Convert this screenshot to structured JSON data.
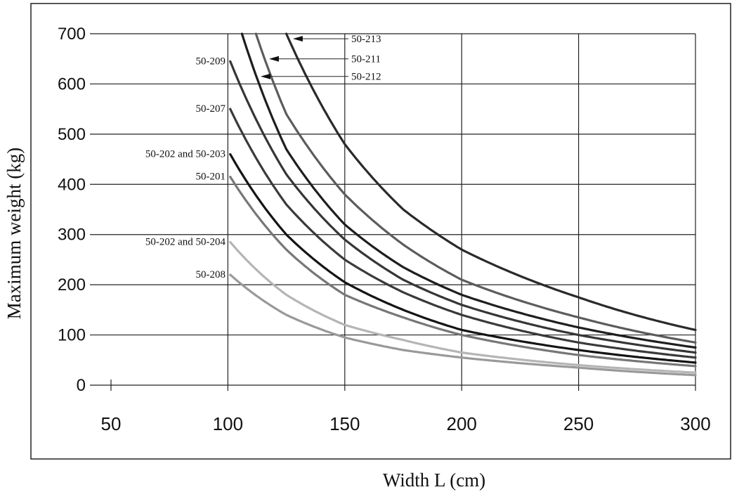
{
  "chart_data": {
    "type": "line",
    "title": "",
    "xlabel": "Width L (cm)",
    "ylabel": "Maximum weight (kg)",
    "xlim": [
      50,
      300
    ],
    "ylim": [
      0,
      700
    ],
    "x_ticks": [
      "50",
      "100",
      "150",
      "200",
      "250",
      "300"
    ],
    "y_ticks": [
      "0",
      "100",
      "200",
      "300",
      "400",
      "500",
      "600",
      "700"
    ],
    "grid": true,
    "series": [
      {
        "name": "50-213",
        "color": "#2a2a2a",
        "x": [
          125,
          150,
          175,
          200,
          250,
          300
        ],
        "y": [
          700,
          480,
          350,
          270,
          175,
          110
        ]
      },
      {
        "name": "50-211",
        "color": "#5c5c5c",
        "x": [
          112,
          125,
          150,
          175,
          200,
          250,
          300
        ],
        "y": [
          700,
          540,
          380,
          280,
          210,
          135,
          85
        ]
      },
      {
        "name": "50-212",
        "color": "#1e1e1e",
        "x": [
          106,
          125,
          150,
          175,
          200,
          250,
          300
        ],
        "y": [
          700,
          470,
          320,
          235,
          180,
          115,
          75
        ]
      },
      {
        "name": "50-209",
        "color": "#363636",
        "x": [
          101,
          125,
          150,
          175,
          200,
          250,
          300
        ],
        "y": [
          645,
          420,
          290,
          210,
          160,
          100,
          65
        ]
      },
      {
        "name": "50-207",
        "color": "#3a3a3a",
        "x": [
          101,
          125,
          150,
          175,
          200,
          250,
          300
        ],
        "y": [
          550,
          360,
          250,
          185,
          140,
          85,
          55
        ]
      },
      {
        "name": "50-202 and 50-203",
        "color": "#141414",
        "x": [
          101,
          125,
          150,
          175,
          200,
          250,
          300
        ],
        "y": [
          460,
          300,
          205,
          150,
          110,
          70,
          45
        ]
      },
      {
        "name": "50-201",
        "color": "#777777",
        "x": [
          101,
          125,
          150,
          175,
          200,
          250,
          300
        ],
        "y": [
          415,
          270,
          180,
          135,
          100,
          60,
          38
        ]
      },
      {
        "name": "50-202 and 50-204",
        "color": "#b5b5b5",
        "x": [
          101,
          125,
          150,
          175,
          200,
          250,
          300
        ],
        "y": [
          285,
          180,
          120,
          90,
          65,
          40,
          25
        ]
      },
      {
        "name": "50-208",
        "color": "#999999",
        "x": [
          101,
          125,
          150,
          175,
          200,
          250,
          300
        ],
        "y": [
          220,
          140,
          95,
          70,
          55,
          35,
          20
        ]
      }
    ],
    "annotations": [
      {
        "text": "50-213",
        "series": "50-213",
        "type": "arrow",
        "at_y": 690
      },
      {
        "text": "50-211",
        "series": "50-211",
        "type": "arrow",
        "at_y": 650
      },
      {
        "text": "50-212",
        "series": "50-212",
        "type": "arrow",
        "at_y": 615
      },
      {
        "text": "50-209",
        "series": "50-209",
        "type": "label"
      },
      {
        "text": "50-207",
        "series": "50-207",
        "type": "label"
      },
      {
        "text": "50-202 and 50-203",
        "series": "50-202 and 50-203",
        "type": "label"
      },
      {
        "text": "50-201",
        "series": "50-201",
        "type": "label"
      },
      {
        "text": "50-202 and 50-204",
        "series": "50-202 and 50-204",
        "type": "label"
      },
      {
        "text": "50-208",
        "series": "50-208",
        "type": "label"
      }
    ]
  }
}
